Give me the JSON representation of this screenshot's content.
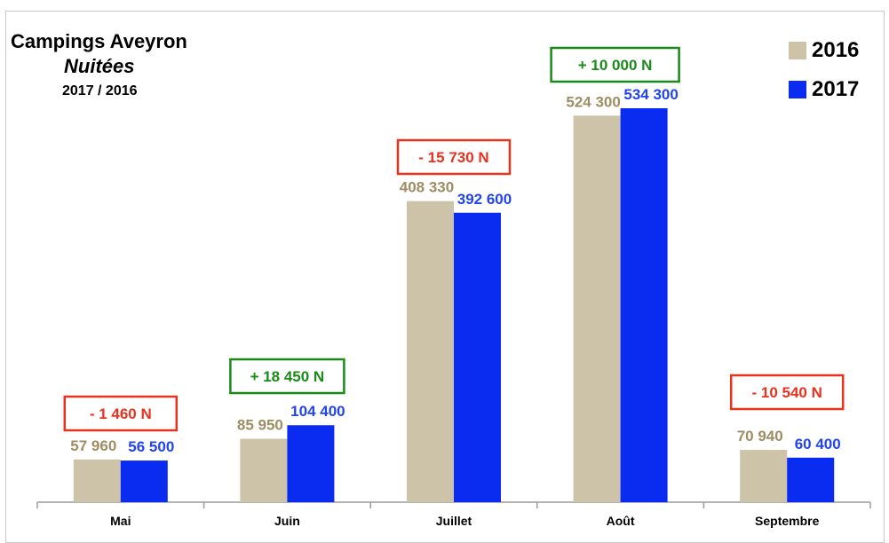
{
  "chart_data": {
    "type": "bar",
    "title": "Campings Aveyron",
    "subtitle": "Nuitées",
    "subtitle2": "2017  / 2016",
    "categories": [
      "Mai",
      "Juin",
      "Juillet",
      "Août",
      "Septembre"
    ],
    "series": [
      {
        "name": "2016",
        "color": "#cdc3a8",
        "label_color": "#9e8d62",
        "values": [
          57960,
          85950,
          408330,
          524300,
          70940
        ],
        "labels": [
          "57 960",
          "85 950",
          "408 330",
          "524 300",
          "70 940"
        ]
      },
      {
        "name": "2017",
        "color": "#0a2cf0",
        "label_color": "#2244ee",
        "values": [
          56500,
          104400,
          392600,
          534300,
          60400
        ],
        "labels": [
          "56 500",
          "104 400",
          "392 600",
          "534 300",
          "60 400"
        ]
      }
    ],
    "annotations": [
      {
        "category": "Mai",
        "text": "- 1 460 N",
        "kind": "negative"
      },
      {
        "category": "Juin",
        "text": "+ 18 450 N",
        "kind": "positive"
      },
      {
        "category": "Juillet",
        "text": "- 15 730 N",
        "kind": "negative"
      },
      {
        "category": "Août",
        "text": "+ 10 000 N",
        "kind": "positive"
      },
      {
        "category": "Septembre",
        "text": "- 10 540 N",
        "kind": "negative"
      }
    ],
    "ylim": [
      0,
      560000
    ],
    "grid": false,
    "legend_position": "top-right",
    "colors": {
      "negative": "#e8321e",
      "positive": "#1a8a1a"
    }
  }
}
